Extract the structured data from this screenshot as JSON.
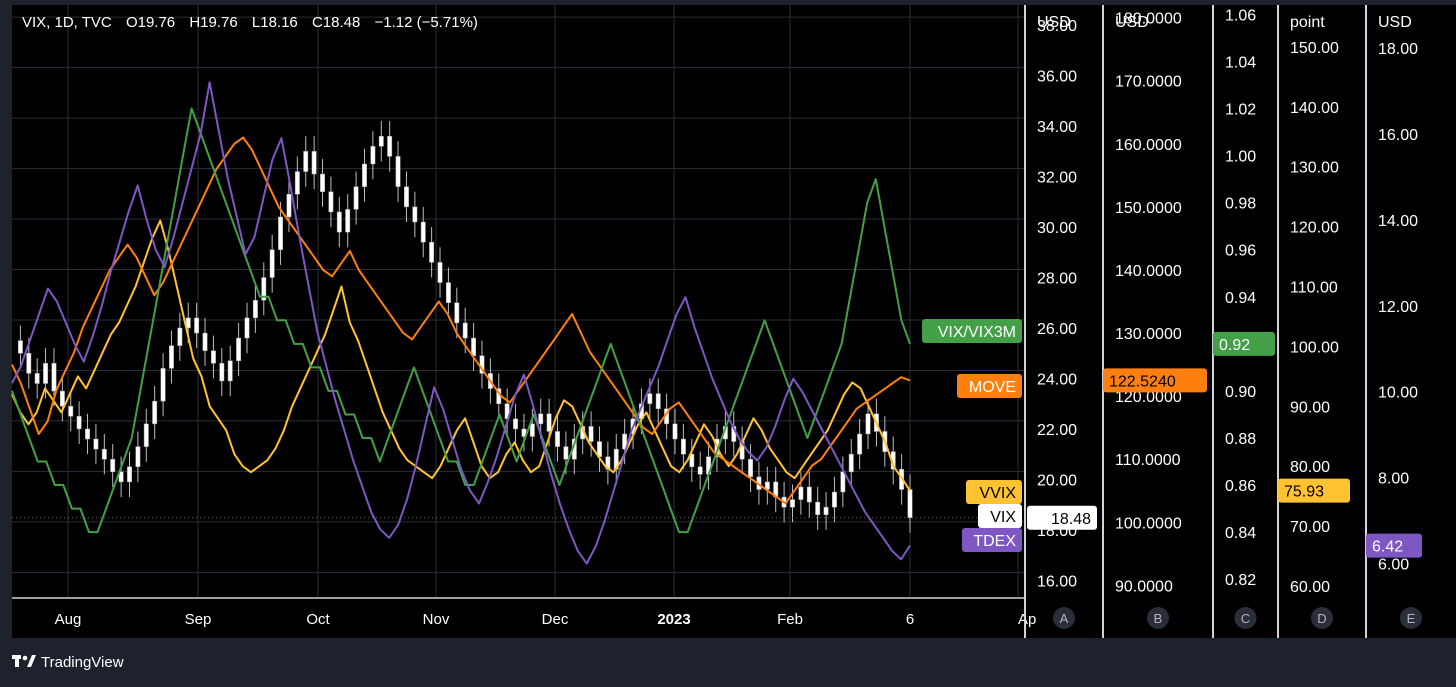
{
  "header": {
    "symbol": "VIX, 1D, TVC",
    "open_label": "O",
    "open": "19.76",
    "high_label": "H",
    "high": "19.76",
    "low_label": "L",
    "low": "18.16",
    "close_label": "C",
    "close": "18.48",
    "change": "−1.12 (−5.71%)"
  },
  "branding": {
    "name": "TradingView"
  },
  "colors": {
    "background": "#000000",
    "frame": "#1e222d",
    "grid": "#2a2e39",
    "candle_up": "#ffffff",
    "candle_down": "#ffffff",
    "vix": "#ffffff",
    "vvix": "#ffc233",
    "move": "#ff7f0e",
    "ratio": "#43a047",
    "tdex": "#7e57c2"
  },
  "chart_data": {
    "type": "line",
    "x_axis": {
      "ticks": [
        "Aug",
        "Sep",
        "Oct",
        "Nov",
        "Dec",
        "2023",
        "Feb",
        "6",
        "Ap"
      ]
    },
    "axes": [
      {
        "id": "A",
        "unit": "USD",
        "min": 15.3,
        "max": 38.8,
        "ticks": [
          "16.00",
          "18.00",
          "20.00",
          "22.00",
          "24.00",
          "26.00",
          "28.00",
          "30.00",
          "32.00",
          "34.00",
          "36.00",
          "38.00"
        ]
      },
      {
        "id": "B",
        "unit": "USD",
        "min": 88,
        "max": 182,
        "ticks": [
          "90.0000",
          "100.0000",
          "110.0000",
          "120.0000",
          "130.0000",
          "140.0000",
          "150.0000",
          "160.0000",
          "170.0000",
          "180.0000"
        ]
      },
      {
        "id": "C",
        "unit": "",
        "min": 0.812,
        "max": 1.064,
        "ticks": [
          "0.82",
          "0.84",
          "0.86",
          "0.88",
          "0.90",
          "0.92",
          "0.94",
          "0.96",
          "0.98",
          "1.00",
          "1.02",
          "1.04",
          "1.06"
        ]
      },
      {
        "id": "D",
        "unit": "point",
        "min": 58,
        "max": 157,
        "ticks": [
          "60.00",
          "70.00",
          "80.00",
          "90.00",
          "100.00",
          "110.00",
          "120.00",
          "130.00",
          "140.00",
          "150.00"
        ]
      },
      {
        "id": "E",
        "unit": "USD",
        "min": 5.2,
        "max": 19.0,
        "ticks": [
          "6.00",
          "8.00",
          "10.00",
          "12.00",
          "14.00",
          "16.00",
          "18.00"
        ]
      }
    ],
    "series": [
      {
        "name": "VIX",
        "axis": "A",
        "style": "candles",
        "last_label": "18.48",
        "values": [
          25.5,
          25.0,
          24.2,
          23.8,
          24.6,
          23.5,
          22.9,
          22.5,
          22.0,
          21.6,
          21.2,
          20.8,
          20.3,
          19.9,
          20.5,
          21.3,
          22.2,
          23.1,
          24.4,
          25.3,
          26.0,
          26.4,
          25.8,
          25.1,
          24.6,
          23.9,
          24.7,
          25.6,
          26.4,
          27.1,
          28.0,
          29.1,
          30.4,
          31.3,
          32.2,
          33.0,
          32.1,
          31.4,
          30.6,
          29.8,
          30.7,
          31.6,
          32.5,
          33.2,
          33.6,
          32.8,
          31.6,
          30.8,
          30.2,
          29.4,
          28.6,
          27.8,
          27.0,
          26.2,
          25.6,
          24.9,
          24.2,
          23.6,
          23.0,
          22.4,
          22.0,
          21.7,
          22.2,
          22.6,
          21.9,
          21.3,
          20.8,
          21.6,
          22.1,
          21.5,
          20.9,
          20.4,
          21.2,
          21.8,
          22.4,
          23.0,
          23.4,
          22.8,
          22.2,
          21.6,
          21.0,
          20.5,
          20.2,
          20.9,
          21.6,
          22.1,
          21.5,
          20.8,
          20.1,
          19.6,
          19.9,
          19.3,
          18.9,
          19.2,
          19.7,
          19.1,
          18.6,
          18.9,
          19.5,
          20.3,
          21.0,
          21.8,
          22.6,
          21.9,
          21.1,
          20.4,
          19.6,
          18.48
        ]
      },
      {
        "name": "VVIX",
        "axis": "D",
        "style": "line",
        "last_label": "75.93",
        "values": [
          92,
          89,
          87,
          89,
          93,
          91,
          89,
          92,
          95,
          93,
          96,
          99,
          102,
          104,
          107,
          110,
          114,
          118,
          121,
          116,
          110,
          104,
          98,
          95,
          90,
          88,
          86,
          82,
          80,
          79,
          80,
          81,
          83,
          86,
          90,
          93,
          96,
          99,
          102,
          106,
          110,
          104,
          101,
          97,
          93,
          89,
          86,
          83,
          81,
          80,
          79,
          78,
          80,
          83,
          86,
          88,
          84,
          80,
          78,
          79,
          82,
          84,
          81,
          79,
          80,
          84,
          88,
          91,
          90,
          87,
          84,
          82,
          80,
          79,
          81,
          84,
          87,
          89,
          86,
          83,
          80,
          79,
          81,
          84,
          87,
          85,
          82,
          80,
          82,
          85,
          88,
          86,
          83,
          81,
          79,
          78,
          80,
          82,
          84,
          86,
          89,
          92,
          94,
          93,
          90,
          87,
          84,
          80,
          78,
          75.93
        ]
      },
      {
        "name": "MOVE",
        "axis": "B",
        "style": "line",
        "last_label": "122.5240",
        "values": [
          125,
          122,
          118,
          114,
          116,
          121,
          124,
          127,
          131,
          134,
          137,
          140,
          142,
          144,
          142,
          139,
          136,
          138,
          141,
          144,
          147,
          150,
          153,
          156,
          158,
          160,
          161,
          159,
          156,
          153,
          150,
          148,
          146,
          144,
          142,
          140,
          139,
          141,
          143,
          140,
          138,
          136,
          134,
          132,
          130,
          129,
          131,
          133,
          135,
          133,
          130,
          128,
          126,
          124,
          122,
          120,
          119,
          121,
          123,
          125,
          127,
          129,
          131,
          133,
          130,
          127,
          125,
          123,
          121,
          119,
          117,
          115,
          114,
          116,
          118,
          119,
          117,
          115,
          113,
          111,
          110,
          109,
          108,
          107,
          106,
          105,
          104,
          103,
          105,
          107,
          109,
          110,
          112,
          114,
          116,
          118,
          119,
          120,
          121,
          122,
          123,
          122.5
        ]
      },
      {
        "name": "VIX/VIX3M",
        "axis": "C",
        "style": "line",
        "last_label": "0.92",
        "values": [
          0.9,
          0.89,
          0.88,
          0.87,
          0.87,
          0.86,
          0.86,
          0.85,
          0.85,
          0.84,
          0.84,
          0.85,
          0.86,
          0.87,
          0.88,
          0.9,
          0.92,
          0.94,
          0.96,
          0.98,
          1.0,
          1.02,
          1.01,
          1.0,
          0.99,
          0.98,
          0.97,
          0.96,
          0.95,
          0.94,
          0.94,
          0.93,
          0.93,
          0.92,
          0.92,
          0.91,
          0.91,
          0.9,
          0.9,
          0.89,
          0.89,
          0.88,
          0.88,
          0.87,
          0.88,
          0.89,
          0.9,
          0.91,
          0.9,
          0.89,
          0.88,
          0.87,
          0.87,
          0.86,
          0.86,
          0.87,
          0.88,
          0.89,
          0.88,
          0.87,
          0.88,
          0.89,
          0.88,
          0.87,
          0.86,
          0.87,
          0.88,
          0.89,
          0.9,
          0.91,
          0.92,
          0.91,
          0.9,
          0.89,
          0.88,
          0.87,
          0.86,
          0.85,
          0.84,
          0.84,
          0.85,
          0.86,
          0.87,
          0.88,
          0.89,
          0.9,
          0.91,
          0.92,
          0.93,
          0.92,
          0.91,
          0.9,
          0.89,
          0.88,
          0.89,
          0.9,
          0.91,
          0.92,
          0.94,
          0.96,
          0.98,
          0.99,
          0.97,
          0.95,
          0.93,
          0.92
        ]
      },
      {
        "name": "TDEX",
        "axis": "E",
        "style": "line",
        "last_label": "6.42",
        "values": [
          10.2,
          10.6,
          11.2,
          11.8,
          12.4,
          12.1,
          11.6,
          11.1,
          10.7,
          11.3,
          12.0,
          12.8,
          13.5,
          14.2,
          14.8,
          14.0,
          13.3,
          12.9,
          13.6,
          14.4,
          15.2,
          16.0,
          17.2,
          16.1,
          15.0,
          14.1,
          13.2,
          13.6,
          14.5,
          15.4,
          15.9,
          14.8,
          13.6,
          12.5,
          11.4,
          10.6,
          9.8,
          9.1,
          8.4,
          7.8,
          7.2,
          6.8,
          6.6,
          6.9,
          7.5,
          8.3,
          9.2,
          10.1,
          9.6,
          8.9,
          8.2,
          7.7,
          7.4,
          7.9,
          8.5,
          9.2,
          9.9,
          10.4,
          9.7,
          8.9,
          8.1,
          7.4,
          6.8,
          6.3,
          6.0,
          6.4,
          7.0,
          7.7,
          8.4,
          9.1,
          9.6,
          10.1,
          10.6,
          11.2,
          11.8,
          12.2,
          11.5,
          10.9,
          10.3,
          9.8,
          9.3,
          8.9,
          8.6,
          8.4,
          8.7,
          9.2,
          9.8,
          10.3,
          10.0,
          9.6,
          9.2,
          8.8,
          8.4,
          8.0,
          7.6,
          7.2,
          6.9,
          6.6,
          6.3,
          6.1,
          6.42
        ]
      }
    ]
  }
}
